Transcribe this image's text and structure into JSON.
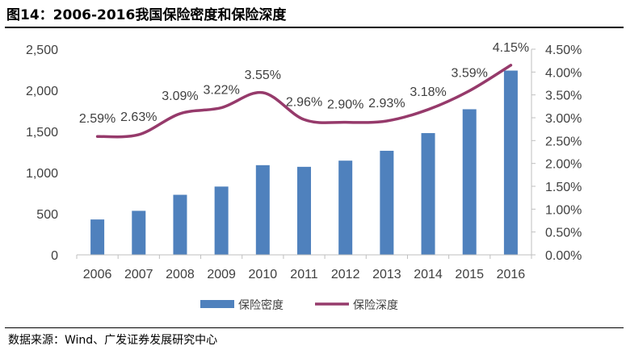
{
  "figure": {
    "title": "图14：2006-2016我国保险密度和保险深度",
    "source": "数据来源：Wind、广发证券发展研究中心"
  },
  "colors": {
    "bar": "#4f81bd",
    "line": "#963a6b",
    "axis": "#bfbfbf",
    "text": "#404040"
  },
  "chart_data": {
    "type": "bar",
    "title": "",
    "categories": [
      "2006",
      "2007",
      "2008",
      "2009",
      "2010",
      "2011",
      "2012",
      "2013",
      "2014",
      "2015",
      "2016"
    ],
    "series": [
      {
        "name": "保险密度",
        "type": "bar",
        "axis": "left",
        "values": [
          430,
          535,
          730,
          830,
          1090,
          1070,
          1145,
          1265,
          1480,
          1770,
          2240
        ]
      },
      {
        "name": "保险深度",
        "type": "line",
        "axis": "right",
        "values": [
          2.59,
          2.63,
          3.09,
          3.22,
          3.55,
          2.96,
          2.9,
          2.93,
          3.18,
          3.59,
          4.15
        ],
        "labels": [
          "2.59%",
          "2.63%",
          "3.09%",
          "3.22%",
          "3.55%",
          "2.96%",
          "2.90%",
          "2.93%",
          "3.18%",
          "3.59%",
          "4.15%"
        ]
      }
    ],
    "y_left": {
      "range": [
        0,
        2500
      ],
      "ticks": [
        0,
        500,
        1000,
        1500,
        2000,
        2500
      ],
      "tick_labels": [
        "0",
        "500",
        "1,000",
        "1,500",
        "2,000",
        "2,500"
      ]
    },
    "y_right": {
      "range": [
        0,
        4.5
      ],
      "ticks": [
        0,
        0.5,
        1,
        1.5,
        2,
        2.5,
        3,
        3.5,
        4,
        4.5
      ],
      "tick_labels": [
        "0.00%",
        "0.50%",
        "1.00%",
        "1.50%",
        "2.00%",
        "2.50%",
        "3.00%",
        "3.50%",
        "4.00%",
        "4.50%"
      ]
    },
    "xlabel": "",
    "ylabel": "",
    "grid": false,
    "legend_position": "bottom"
  }
}
